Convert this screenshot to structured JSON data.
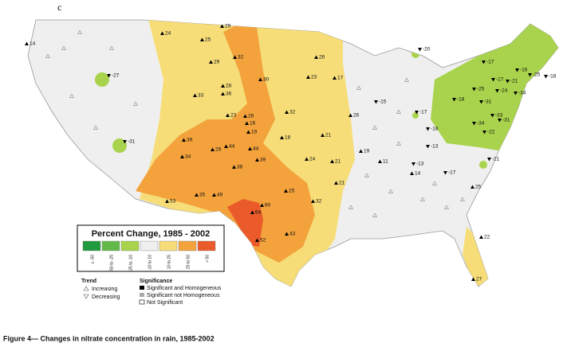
{
  "panel_label": "c",
  "legend": {
    "title": "Percent Change, 1985 - 2002",
    "bins": [
      {
        "label": "≤ -50",
        "color": "#1f9a3e"
      },
      {
        "label": "-50 to -25",
        "color": "#62b94a"
      },
      {
        "label": "-25 to -10",
        "color": "#a9d34c"
      },
      {
        "label": "-10 to 10",
        "color": "#efefef"
      },
      {
        "label": "10 to 25",
        "color": "#f6dd78"
      },
      {
        "label": "25 to 50",
        "color": "#f3a23c"
      },
      {
        "label": "> 50",
        "color": "#ea5a2a"
      }
    ]
  },
  "trend": {
    "title": "Trend",
    "items": [
      "Increasing",
      "Decreasing"
    ]
  },
  "significance": {
    "title": "Significance",
    "items": [
      "Significant and Homogeneous",
      "Significant not Homogeneous",
      "Not Significant"
    ]
  },
  "site_labels": [
    14,
    -27,
    -31,
    24,
    25,
    29,
    29,
    32,
    28,
    36,
    30,
    33,
    23,
    26,
    16,
    19,
    32,
    18,
    26,
    23,
    17,
    26,
    21,
    19,
    24,
    21,
    21,
    32,
    -20,
    -15,
    -17,
    -18,
    -13,
    11,
    14,
    -13,
    -17,
    -21,
    25,
    22,
    27,
    39,
    34,
    29,
    44,
    44,
    38,
    39,
    35,
    49,
    53,
    60,
    64,
    52,
    25,
    43,
    -17,
    -16,
    -25,
    -18,
    -21,
    -17,
    -25,
    -24,
    -34,
    -31,
    -33,
    -31,
    -34,
    -22,
    -18
  ],
  "caption": "Figure 4— Changes in nitrate concentration in rain, 1985-2002"
}
